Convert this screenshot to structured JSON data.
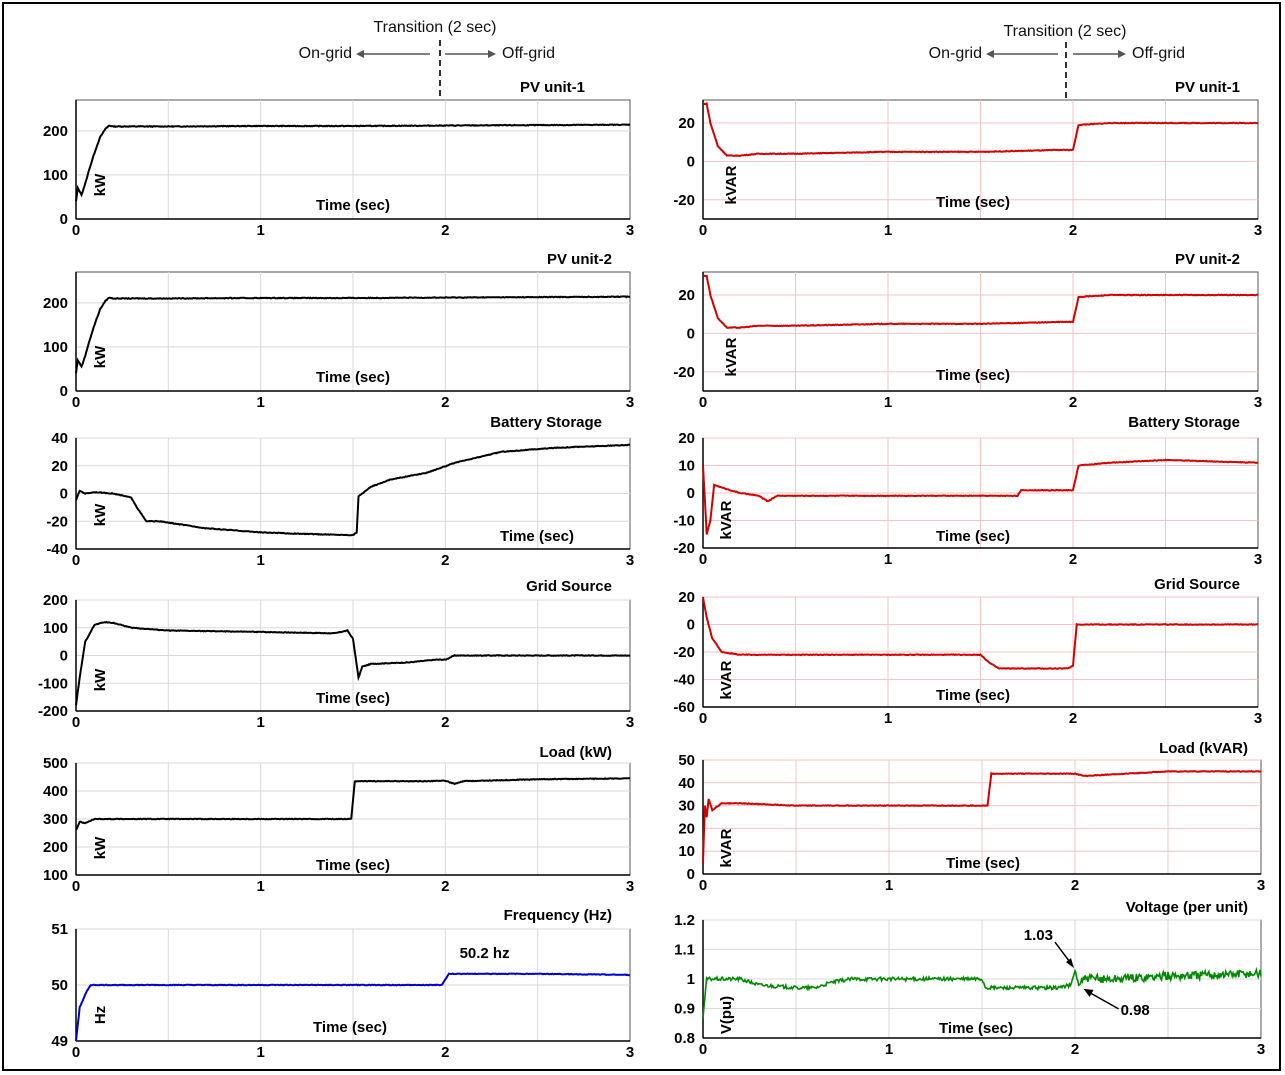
{
  "header": {
    "left": {
      "transition": "Transition (2 sec)",
      "on_grid": "On-grid",
      "off_grid": "Off-grid"
    },
    "right": {
      "transition": "Transition (2 sec)",
      "on_grid": "On-grid",
      "off_grid": "Off-grid"
    }
  },
  "chart_data": [
    {
      "id": "pv1-p",
      "type": "line",
      "title": "PV unit-1",
      "xlabel": "Time (sec)",
      "ylabel": "kW",
      "color": "#000000",
      "xlim": [
        0,
        3
      ],
      "ylim": [
        0,
        270
      ],
      "yticks": [
        0,
        100,
        200
      ],
      "xticks": [
        0,
        1,
        2,
        3
      ],
      "series": [
        {
          "x": [
            0,
            0.01,
            0.03,
            0.05,
            0.07,
            0.1,
            0.13,
            0.16,
            0.18,
            0.2,
            0.5,
            1,
            1.5,
            2,
            2.5,
            3
          ],
          "y": [
            40,
            70,
            55,
            80,
            110,
            150,
            185,
            205,
            212,
            210,
            210,
            211,
            211,
            212,
            213,
            214
          ]
        }
      ]
    },
    {
      "id": "pv1-q",
      "type": "line",
      "title": "PV unit-1",
      "xlabel": "Time (sec)",
      "ylabel": "kVAR",
      "color": "#d40000",
      "xlim": [
        0,
        3
      ],
      "ylim": [
        -30,
        32
      ],
      "yticks": [
        -20,
        0,
        20
      ],
      "xticks": [
        0,
        1,
        2,
        3
      ],
      "series": [
        {
          "x": [
            0,
            0.02,
            0.04,
            0.08,
            0.13,
            0.2,
            0.3,
            0.5,
            1,
            1.5,
            1.95,
            2.0,
            2.03,
            2.2,
            2.5,
            3
          ],
          "y": [
            30,
            30,
            20,
            8,
            3,
            3,
            4,
            4,
            5,
            5,
            6,
            6,
            19,
            20,
            20,
            20
          ]
        }
      ]
    },
    {
      "id": "pv2-p",
      "type": "line",
      "title": "PV unit-2",
      "xlabel": "Time (sec)",
      "ylabel": "kW",
      "color": "#000000",
      "xlim": [
        0,
        3
      ],
      "ylim": [
        0,
        270
      ],
      "yticks": [
        0,
        100,
        200
      ],
      "xticks": [
        0,
        1,
        2,
        3
      ],
      "series": [
        {
          "x": [
            0,
            0.01,
            0.03,
            0.05,
            0.07,
            0.1,
            0.13,
            0.16,
            0.18,
            0.2,
            0.5,
            1,
            1.5,
            2,
            2.5,
            3
          ],
          "y": [
            40,
            70,
            55,
            80,
            110,
            150,
            185,
            205,
            212,
            210,
            210,
            211,
            211,
            212,
            213,
            214
          ]
        }
      ]
    },
    {
      "id": "pv2-q",
      "type": "line",
      "title": "PV unit-2",
      "xlabel": "Time (sec)",
      "ylabel": "kVAR",
      "color": "#d40000",
      "xlim": [
        0,
        3
      ],
      "ylim": [
        -30,
        32
      ],
      "yticks": [
        -20,
        0,
        20
      ],
      "xticks": [
        0,
        1,
        2,
        3
      ],
      "series": [
        {
          "x": [
            0,
            0.02,
            0.04,
            0.08,
            0.13,
            0.2,
            0.3,
            0.5,
            1,
            1.5,
            1.95,
            2.0,
            2.03,
            2.2,
            2.5,
            3
          ],
          "y": [
            30,
            30,
            20,
            8,
            3,
            3,
            4,
            4,
            5,
            5,
            6,
            6,
            19,
            20,
            20,
            20
          ]
        }
      ]
    },
    {
      "id": "bat-p",
      "type": "line",
      "title": "Battery Storage",
      "xlabel": "Time (sec)",
      "ylabel": "kW",
      "color": "#000000",
      "xlim": [
        0,
        3
      ],
      "ylim": [
        -40,
        40
      ],
      "yticks": [
        -40,
        -20,
        0,
        20,
        40
      ],
      "xticks": [
        0,
        1,
        2,
        3
      ],
      "series": [
        {
          "x": [
            0,
            0.02,
            0.05,
            0.1,
            0.2,
            0.3,
            0.33,
            0.38,
            0.45,
            0.7,
            1,
            1.2,
            1.5,
            1.52,
            1.53,
            1.6,
            1.7,
            1.9,
            2.05,
            2.3,
            2.6,
            3
          ],
          "y": [
            -5,
            2,
            0,
            1,
            0,
            -3,
            -10,
            -20,
            -20,
            -25,
            -28,
            -29,
            -30,
            -28,
            -2,
            5,
            10,
            15,
            22,
            30,
            33,
            35
          ]
        }
      ]
    },
    {
      "id": "bat-q",
      "type": "line",
      "title": "Battery Storage",
      "xlabel": "Time (sec)",
      "ylabel": "kVAR",
      "color": "#d40000",
      "xlim": [
        0,
        3
      ],
      "ylim": [
        -20,
        20
      ],
      "yticks": [
        -20,
        -10,
        0,
        10,
        20
      ],
      "xticks": [
        0,
        1,
        2,
        3
      ],
      "series": [
        {
          "x": [
            0,
            0.02,
            0.04,
            0.06,
            0.1,
            0.2,
            0.3,
            0.35,
            0.4,
            0.5,
            1,
            1.5,
            1.7,
            1.72,
            2.0,
            2.03,
            2.2,
            2.5,
            3
          ],
          "y": [
            10,
            -15,
            -10,
            3,
            2,
            0,
            -1,
            -3,
            -1,
            -1,
            -1,
            -1,
            -1,
            1,
            1,
            10,
            11,
            12,
            11
          ]
        }
      ]
    },
    {
      "id": "grid-p",
      "type": "line",
      "title": "Grid Source",
      "xlabel": "Time (sec)",
      "ylabel": "kW",
      "color": "#000000",
      "xlim": [
        0,
        3
      ],
      "ylim": [
        -200,
        200
      ],
      "yticks": [
        -200,
        -100,
        0,
        100,
        200
      ],
      "xticks": [
        0,
        1,
        2,
        3
      ],
      "series": [
        {
          "x": [
            0,
            0.02,
            0.05,
            0.1,
            0.15,
            0.2,
            0.3,
            0.5,
            1,
            1.4,
            1.47,
            1.5,
            1.53,
            1.55,
            1.6,
            1.8,
            1.95,
            2.0,
            2.05,
            2.5,
            3
          ],
          "y": [
            -180,
            -80,
            50,
            110,
            120,
            118,
            100,
            90,
            85,
            80,
            90,
            60,
            -80,
            -40,
            -30,
            -25,
            -15,
            -15,
            0,
            0,
            0
          ]
        }
      ]
    },
    {
      "id": "grid-q",
      "type": "line",
      "title": "Grid Source",
      "xlabel": "Time (sec)",
      "ylabel": "kVAR",
      "color": "#d40000",
      "xlim": [
        0,
        3
      ],
      "ylim": [
        -60,
        20
      ],
      "yticks": [
        -60,
        -40,
        -20,
        0,
        20
      ],
      "xticks": [
        0,
        1,
        2,
        3
      ],
      "series": [
        {
          "x": [
            0,
            0.02,
            0.05,
            0.1,
            0.2,
            0.5,
            1,
            1.5,
            1.55,
            1.6,
            1.8,
            1.97,
            2.0,
            2.02,
            2.5,
            3
          ],
          "y": [
            20,
            5,
            -10,
            -20,
            -22,
            -22,
            -22,
            -22,
            -28,
            -32,
            -32,
            -32,
            -30,
            0,
            0,
            0
          ]
        }
      ]
    },
    {
      "id": "load-p",
      "type": "line",
      "title": "Load (kW)",
      "xlabel": "Time (sec)",
      "ylabel": "kW",
      "color": "#000000",
      "xlim": [
        0,
        3
      ],
      "ylim": [
        100,
        500
      ],
      "yticks": [
        100,
        200,
        300,
        400,
        500
      ],
      "xticks": [
        0,
        1,
        2,
        3
      ],
      "series": [
        {
          "x": [
            0,
            0.02,
            0.05,
            0.1,
            0.3,
            0.5,
            1,
            1.4,
            1.49,
            1.51,
            1.6,
            1.9,
            2.0,
            2.05,
            2.1,
            2.5,
            3
          ],
          "y": [
            260,
            290,
            285,
            300,
            300,
            300,
            300,
            300,
            300,
            435,
            435,
            435,
            437,
            425,
            435,
            442,
            445
          ]
        }
      ]
    },
    {
      "id": "load-q",
      "type": "line",
      "title": "Load (kVAR)",
      "xlabel": "Time (sec)",
      "ylabel": "kVAR",
      "color": "#d40000",
      "xlim": [
        0,
        3
      ],
      "ylim": [
        0,
        50
      ],
      "yticks": [
        0,
        10,
        20,
        30,
        40,
        50
      ],
      "xticks": [
        0,
        1,
        2,
        3
      ],
      "series": [
        {
          "x": [
            0,
            0.01,
            0.02,
            0.03,
            0.05,
            0.1,
            0.2,
            0.5,
            1,
            1.5,
            1.53,
            1.55,
            1.6,
            2.0,
            2.05,
            2.5,
            3
          ],
          "y": [
            5,
            30,
            25,
            33,
            28,
            31,
            31,
            30,
            30,
            30,
            30,
            44,
            44,
            44,
            43,
            45,
            45
          ]
        }
      ]
    },
    {
      "id": "freq",
      "type": "line",
      "title": "Frequency (Hz)",
      "xlabel": "Time (sec)",
      "ylabel": "Hz",
      "color": "#0000cc",
      "xlim": [
        0,
        3
      ],
      "ylim": [
        49,
        51
      ],
      "yticks": [
        49,
        50,
        51
      ],
      "xticks": [
        0,
        1,
        2,
        3
      ],
      "annotations": [
        {
          "text": "50.2 hz",
          "x": 2.05,
          "y": 50.2
        }
      ],
      "series": [
        {
          "x": [
            0,
            0.02,
            0.04,
            0.06,
            0.08,
            0.1,
            0.2,
            0.5,
            1,
            1.5,
            1.98,
            2.0,
            2.02,
            2.05,
            2.5,
            3
          ],
          "y": [
            49,
            49.6,
            49.75,
            49.9,
            50.0,
            50.0,
            50.0,
            50.0,
            50.0,
            50.0,
            50.0,
            50.1,
            50.2,
            50.2,
            50.2,
            50.18
          ]
        }
      ]
    },
    {
      "id": "volt",
      "type": "line",
      "title": "Voltage (per unit)",
      "xlabel": "Time (sec)",
      "ylabel": "V(pu)",
      "color": "#008800",
      "xlim": [
        0,
        3
      ],
      "ylim": [
        0.8,
        1.2
      ],
      "yticks": [
        0.8,
        0.9,
        1.0,
        1.1,
        1.2
      ],
      "xticks": [
        0,
        1,
        2,
        3
      ],
      "annotations": [
        {
          "text": "1.03",
          "x": 2.0,
          "y": 1.03
        },
        {
          "text": "0.98",
          "x": 2.03,
          "y": 0.98
        }
      ],
      "series": [
        {
          "x": [
            0,
            0.02,
            0.05,
            0.1,
            0.2,
            0.3,
            0.5,
            0.6,
            0.65,
            0.7,
            0.8,
            1.0,
            1.5,
            1.52,
            1.7,
            1.9,
            1.98,
            2.0,
            2.02,
            2.05,
            2.2,
            2.5,
            3
          ],
          "y": [
            0.87,
            1.0,
            1.0,
            1.0,
            1.0,
            0.98,
            0.97,
            0.97,
            0.98,
            0.99,
            1.0,
            1.0,
            1.0,
            0.97,
            0.97,
            0.97,
            0.98,
            1.03,
            0.98,
            1.0,
            1.0,
            1.01,
            1.02
          ]
        }
      ]
    }
  ]
}
